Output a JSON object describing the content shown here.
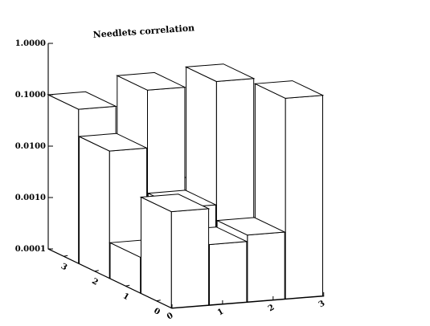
{
  "chart_data": {
    "type": "bar3d",
    "title": "Needlets correlation",
    "z_scale": "log",
    "zlim": [
      0.0001,
      1.0
    ],
    "z_tick_labels": [
      "0.0001",
      "0.0010",
      "0.0100",
      "0.1000",
      "1.0000"
    ],
    "x_tick_labels": [
      "0",
      "1",
      "2",
      "3"
    ],
    "y_tick_labels": [
      "0",
      "1",
      "2",
      "3"
    ],
    "grid": false,
    "bars": [
      {
        "x": 0,
        "y": 0,
        "z": 0.1
      },
      {
        "x": 0,
        "y": 1,
        "z": 0.00018
      },
      {
        "x": 0,
        "y": 2,
        "z": 0.0006
      },
      {
        "x": 0,
        "y": 3,
        "z": 0.0015
      },
      {
        "x": 1,
        "y": 0,
        "z": 0.03
      },
      {
        "x": 1,
        "y": 1,
        "z": 0.4
      },
      {
        "x": 1,
        "y": 2,
        "z": 0.0006
      },
      {
        "x": 1,
        "y": 3,
        "z": 0.0004
      },
      {
        "x": 2,
        "y": 0,
        "z": 0.0005
      },
      {
        "x": 2,
        "y": 1,
        "z": 0.004
      },
      {
        "x": 2,
        "y": 2,
        "z": 1.0
      },
      {
        "x": 2,
        "y": 3,
        "z": 0.0009
      },
      {
        "x": 3,
        "y": 0,
        "z": 0.0075
      },
      {
        "x": 3,
        "y": 1,
        "z": 0.0015
      },
      {
        "x": 3,
        "y": 2,
        "z": 0.002
      },
      {
        "x": 3,
        "y": 3,
        "z": 0.8
      }
    ]
  }
}
